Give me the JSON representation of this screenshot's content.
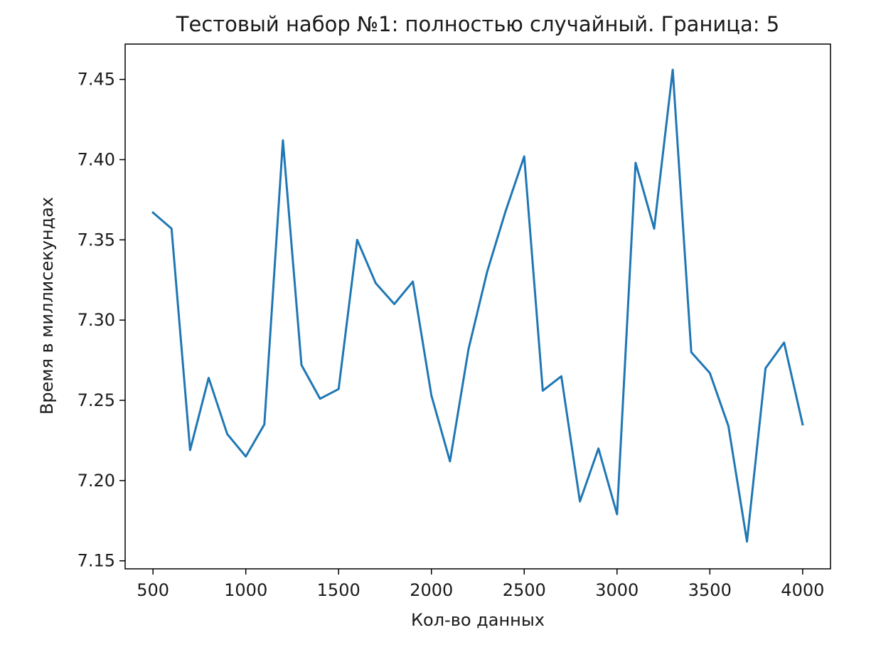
{
  "chart_data": {
    "type": "line",
    "title": "Тестовый набор №1: полностью случайный. Граница: 5",
    "xlabel": "Кол-во данных",
    "ylabel": "Время в миллисекундах",
    "xlim": [
      350,
      4150
    ],
    "ylim": [
      7.145,
      7.472
    ],
    "xticks": [
      500,
      1000,
      1500,
      2000,
      2500,
      3000,
      3500,
      4000
    ],
    "yticks": [
      7.15,
      7.2,
      7.25,
      7.3,
      7.35,
      7.4,
      7.45
    ],
    "ytick_labels": [
      "7.15",
      "7.20",
      "7.25",
      "7.30",
      "7.35",
      "7.40",
      "7.45"
    ],
    "grid": false,
    "line_color": "#1f77b4",
    "series": [
      {
        "x": [
          500,
          600,
          700,
          800,
          900,
          1000,
          1100,
          1200,
          1300,
          1400,
          1500,
          1600,
          1700,
          1800,
          1900,
          2000,
          2100,
          2200,
          2300,
          2400,
          2500,
          2600,
          2700,
          2800,
          2900,
          3000,
          3100,
          3200,
          3300,
          3400,
          3500,
          3600,
          3700,
          3800,
          3900,
          4000
        ],
        "values": [
          7.367,
          7.357,
          7.219,
          7.264,
          7.229,
          7.215,
          7.235,
          7.412,
          7.272,
          7.251,
          7.257,
          7.35,
          7.323,
          7.31,
          7.324,
          7.253,
          7.212,
          7.282,
          7.33,
          7.368,
          7.402,
          7.256,
          7.265,
          7.187,
          7.22,
          7.179,
          7.398,
          7.357,
          7.456,
          7.28,
          7.267,
          7.234,
          7.162,
          7.27,
          7.286,
          7.235
        ]
      }
    ]
  }
}
